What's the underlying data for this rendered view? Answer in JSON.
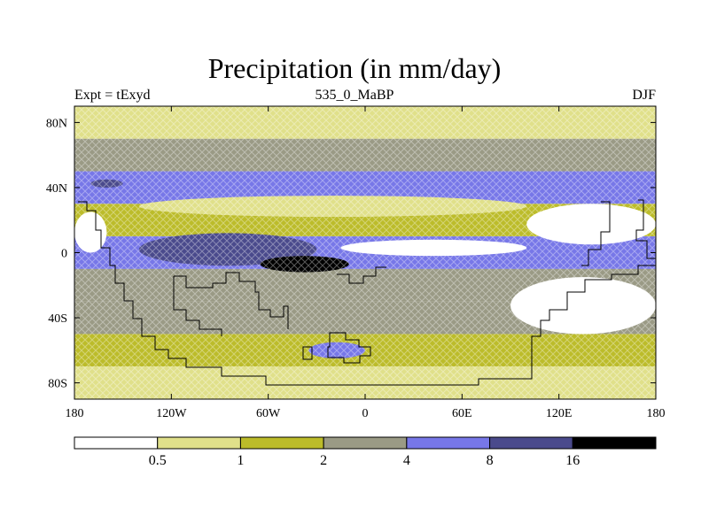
{
  "chart_data": {
    "type": "heatmap",
    "title": "Precipitation (in mm/day)",
    "subtitle_left": "Expt = tExyd",
    "subtitle_center": "535_0_MaBP",
    "subtitle_right": "DJF",
    "x_ticks": [
      "180",
      "120W",
      "60W",
      "0",
      "60E",
      "120E",
      "180"
    ],
    "x_tick_values": [
      -180,
      -120,
      -60,
      0,
      60,
      120,
      180
    ],
    "y_ticks": [
      "80N",
      "40N",
      "0",
      "40S",
      "80S"
    ],
    "y_tick_values": [
      80,
      40,
      0,
      -40,
      -80
    ],
    "xlim": [
      -180,
      180
    ],
    "ylim": [
      -90,
      90
    ],
    "colorbar": {
      "boundaries": [
        "0.5",
        "1",
        "2",
        "4",
        "8",
        "16"
      ],
      "colors": [
        "#ffffff",
        "#e0e08a",
        "#bcbc2a",
        "#9a9a85",
        "#7777e8",
        "#4a4a8c",
        "#000000"
      ]
    },
    "bands": [
      {
        "lat_range": [
          70,
          90
        ],
        "level": 1
      },
      {
        "lat_range": [
          50,
          70
        ],
        "level": 3
      },
      {
        "lat_range": [
          30,
          50
        ],
        "level": 4
      },
      {
        "lat_range": [
          10,
          30
        ],
        "level": 2
      },
      {
        "lat_range": [
          -10,
          10
        ],
        "level": 4
      },
      {
        "lat_range": [
          -30,
          -10
        ],
        "level": 3
      },
      {
        "lat_range": [
          -50,
          -30
        ],
        "level": 3
      },
      {
        "lat_range": [
          -70,
          -50
        ],
        "level": 2
      },
      {
        "lat_range": [
          -90,
          -70
        ],
        "level": 1
      }
    ],
    "regions": [
      {
        "name": "northern-subtropical-dry-zone",
        "lon": [
          -140,
          100
        ],
        "lat": [
          22,
          35
        ],
        "level": 1
      },
      {
        "name": "tropical-rain-band-west",
        "lon": [
          -140,
          -30
        ],
        "lat": [
          -8,
          12
        ],
        "level": 5
      },
      {
        "name": "equatorial-dry-tongue",
        "lon": [
          -15,
          100
        ],
        "lat": [
          -2,
          8
        ],
        "level": 0
      },
      {
        "name": "heavy-rain-core",
        "lon": [
          -65,
          -10
        ],
        "lat": [
          -12,
          -2
        ],
        "level": 6
      },
      {
        "name": "western-dry-zone",
        "lon": [
          -180,
          -160
        ],
        "lat": [
          0,
          25
        ],
        "level": 0
      },
      {
        "name": "eastern-dry-region-north",
        "lon": [
          100,
          180
        ],
        "lat": [
          5,
          30
        ],
        "level": 0
      },
      {
        "name": "eastern-dry-region-south",
        "lon": [
          90,
          180
        ],
        "lat": [
          -50,
          -15
        ],
        "level": 0
      },
      {
        "name": "southern-subtropical-high",
        "lon": [
          -100,
          0
        ],
        "lat": [
          -70,
          -50
        ],
        "level": 2
      },
      {
        "name": "north-high-rain-patch",
        "lon": [
          -170,
          -150
        ],
        "lat": [
          40,
          45
        ],
        "level": 5
      },
      {
        "name": "south-moist-patch",
        "lon": [
          -35,
          0
        ],
        "lat": [
          -65,
          -55
        ],
        "level": 4
      }
    ]
  }
}
